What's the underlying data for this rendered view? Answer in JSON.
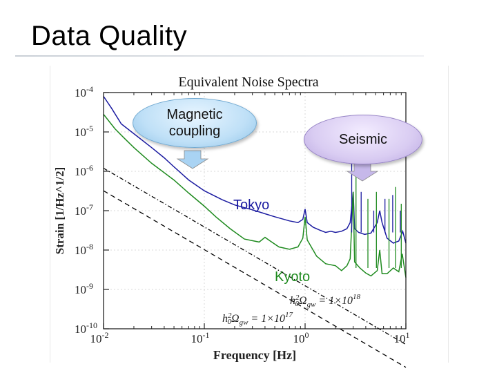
{
  "slide": {
    "title": "Data Quality"
  },
  "callouts": {
    "magnetic": "Magnetic coupling",
    "seismic": "Seismic"
  },
  "colors": {
    "tokyo": "#1a1aa0",
    "kyoto": "#1e8a1e",
    "reference": "#000000",
    "arrow_magnetic": "#a9d3f3",
    "arrow_seismic": "#c6b8ea"
  },
  "chart_data": {
    "type": "line",
    "title": "Equivalent Noise Spectra",
    "xlabel": "Frequency [Hz]",
    "ylabel": "Strain [1/Hz^1/2]",
    "xscale": "log",
    "yscale": "log",
    "xlim": [
      0.01,
      10
    ],
    "ylim": [
      1e-10,
      0.0001
    ],
    "x_ticks": [
      {
        "value": 0.01,
        "base": "10",
        "exp": "-2"
      },
      {
        "value": 0.1,
        "base": "10",
        "exp": "-1"
      },
      {
        "value": 1,
        "base": "10",
        "exp": "0"
      },
      {
        "value": 10,
        "base": "10",
        "exp": "1"
      }
    ],
    "y_ticks": [
      {
        "value": 0.0001,
        "base": "10",
        "exp": "-4"
      },
      {
        "value": 1e-05,
        "base": "10",
        "exp": "-5"
      },
      {
        "value": 1e-06,
        "base": "10",
        "exp": "-6"
      },
      {
        "value": 1e-07,
        "base": "10",
        "exp": "-7"
      },
      {
        "value": 1e-08,
        "base": "10",
        "exp": "-8"
      },
      {
        "value": 1e-09,
        "base": "10",
        "exp": "-9"
      },
      {
        "value": 1e-10,
        "base": "10",
        "exp": "-10"
      }
    ],
    "grid": true,
    "series": [
      {
        "name": "Tokyo",
        "style": "solid",
        "points": [
          [
            0.01,
            8e-05
          ],
          [
            0.012,
            4e-05
          ],
          [
            0.015,
            1.6e-05
          ],
          [
            0.02,
            9e-06
          ],
          [
            0.03,
            4e-06
          ],
          [
            0.04,
            2.2e-06
          ],
          [
            0.05,
            1.3e-06
          ],
          [
            0.07,
            6e-07
          ],
          [
            0.1,
            3.2e-07
          ],
          [
            0.15,
            1.9e-07
          ],
          [
            0.2,
            1.4e-07
          ],
          [
            0.3,
            1.05e-07
          ],
          [
            0.5,
            7e-08
          ],
          [
            0.7,
            5.5e-08
          ],
          [
            0.85,
            5e-08
          ],
          [
            0.95,
            6e-08
          ],
          [
            1.0,
            1.1e-07
          ],
          [
            1.05,
            5e-08
          ],
          [
            1.2,
            3.8e-08
          ],
          [
            1.4,
            3.2e-08
          ],
          [
            1.6,
            2.8e-08
          ],
          [
            1.8,
            3e-08
          ],
          [
            2.0,
            2.8e-08
          ],
          [
            2.3,
            3e-08
          ],
          [
            2.6,
            3.5e-08
          ],
          [
            2.8,
            5e-08
          ],
          [
            3.0,
            3e-07
          ],
          [
            3.1,
            3.5e-08
          ],
          [
            3.4,
            2.8e-08
          ],
          [
            3.9,
            2.5e-08
          ],
          [
            4.5,
            2.7e-08
          ],
          [
            5.2,
            5e-08
          ],
          [
            5.5,
            1e-07
          ],
          [
            5.8,
            5e-08
          ],
          [
            6.5,
            2e-08
          ],
          [
            7.5,
            1.5e-08
          ],
          [
            8.5,
            1.7e-08
          ],
          [
            9.3,
            3e-08
          ],
          [
            10,
            1.5e-08
          ]
        ]
      },
      {
        "name": "Kyoto",
        "style": "solid",
        "points": [
          [
            0.01,
            2.8e-05
          ],
          [
            0.013,
            1.2e-05
          ],
          [
            0.016,
            7e-06
          ],
          [
            0.02,
            4e-06
          ],
          [
            0.03,
            1.6e-06
          ],
          [
            0.05,
            6e-07
          ],
          [
            0.07,
            2.8e-07
          ],
          [
            0.1,
            1.3e-07
          ],
          [
            0.13,
            7e-08
          ],
          [
            0.18,
            3.5e-08
          ],
          [
            0.25,
            1.9e-08
          ],
          [
            0.35,
            1.6e-08
          ],
          [
            0.4,
            2.1e-08
          ],
          [
            0.45,
            1.7e-08
          ],
          [
            0.55,
            1.2e-08
          ],
          [
            0.7,
            1.05e-08
          ],
          [
            0.85,
            1.2e-08
          ],
          [
            0.95,
            2e-08
          ],
          [
            1.0,
            7e-08
          ],
          [
            1.05,
            1.8e-08
          ],
          [
            1.3,
            7e-09
          ],
          [
            1.6,
            4.5e-09
          ],
          [
            2.0,
            4e-09
          ],
          [
            2.3,
            3e-09
          ],
          [
            2.6,
            4e-09
          ],
          [
            2.8,
            6e-09
          ],
          [
            3.0,
            3e-07
          ],
          [
            3.1,
            5e-09
          ],
          [
            3.5,
            3.5e-09
          ],
          [
            4.0,
            2.6e-09
          ],
          [
            4.5,
            2.2e-09
          ],
          [
            5.2,
            3e-09
          ],
          [
            5.5,
            1e-08
          ],
          [
            5.8,
            2.5e-09
          ],
          [
            6.5,
            2.5e-09
          ],
          [
            7.5,
            3.5e-09
          ],
          [
            8.5,
            2.8e-09
          ],
          [
            9.2,
            8e-09
          ],
          [
            10,
            2e-09
          ]
        ]
      },
      {
        "name": "Ref 1e18",
        "style": "dashdot",
        "points": [
          [
            0.01,
            1.2e-06
          ],
          [
            10,
            4e-11
          ]
        ]
      },
      {
        "name": "Ref 1e17",
        "style": "dashed",
        "points": [
          [
            0.01,
            3.2e-07
          ],
          [
            10,
            1.05e-11
          ]
        ]
      }
    ],
    "spikes": {
      "Tokyo": [
        [
          2.9,
          2e-06
        ],
        [
          3.6,
          3e-07
        ],
        [
          4.8,
          1e-07
        ],
        [
          6.2,
          2e-07
        ],
        [
          7.4,
          2.5e-07
        ],
        [
          8.8,
          1e-07
        ]
      ],
      "Kyoto": [
        [
          3.2,
          4e-06
        ],
        [
          4.2,
          2e-07
        ],
        [
          5.1,
          3e-07
        ],
        [
          6.8,
          2e-07
        ],
        [
          7.9,
          4e-07
        ],
        [
          9.0,
          1.5e-07
        ]
      ]
    },
    "annotations": {
      "tokyo": "Tokyo",
      "kyoto": "Kyoto",
      "ref_1e18": {
        "prefix": "h",
        "sub": "0",
        "sup": "2",
        "omega": "Ω",
        "omega_sub": "gw",
        "rhs": " = 1×10",
        "rhs_exp": "18"
      },
      "ref_1e17": {
        "prefix": "h",
        "sub": "0",
        "sup": "2",
        "omega": "Ω",
        "omega_sub": "gw",
        "rhs": " = 1×10",
        "rhs_exp": "17"
      }
    }
  }
}
